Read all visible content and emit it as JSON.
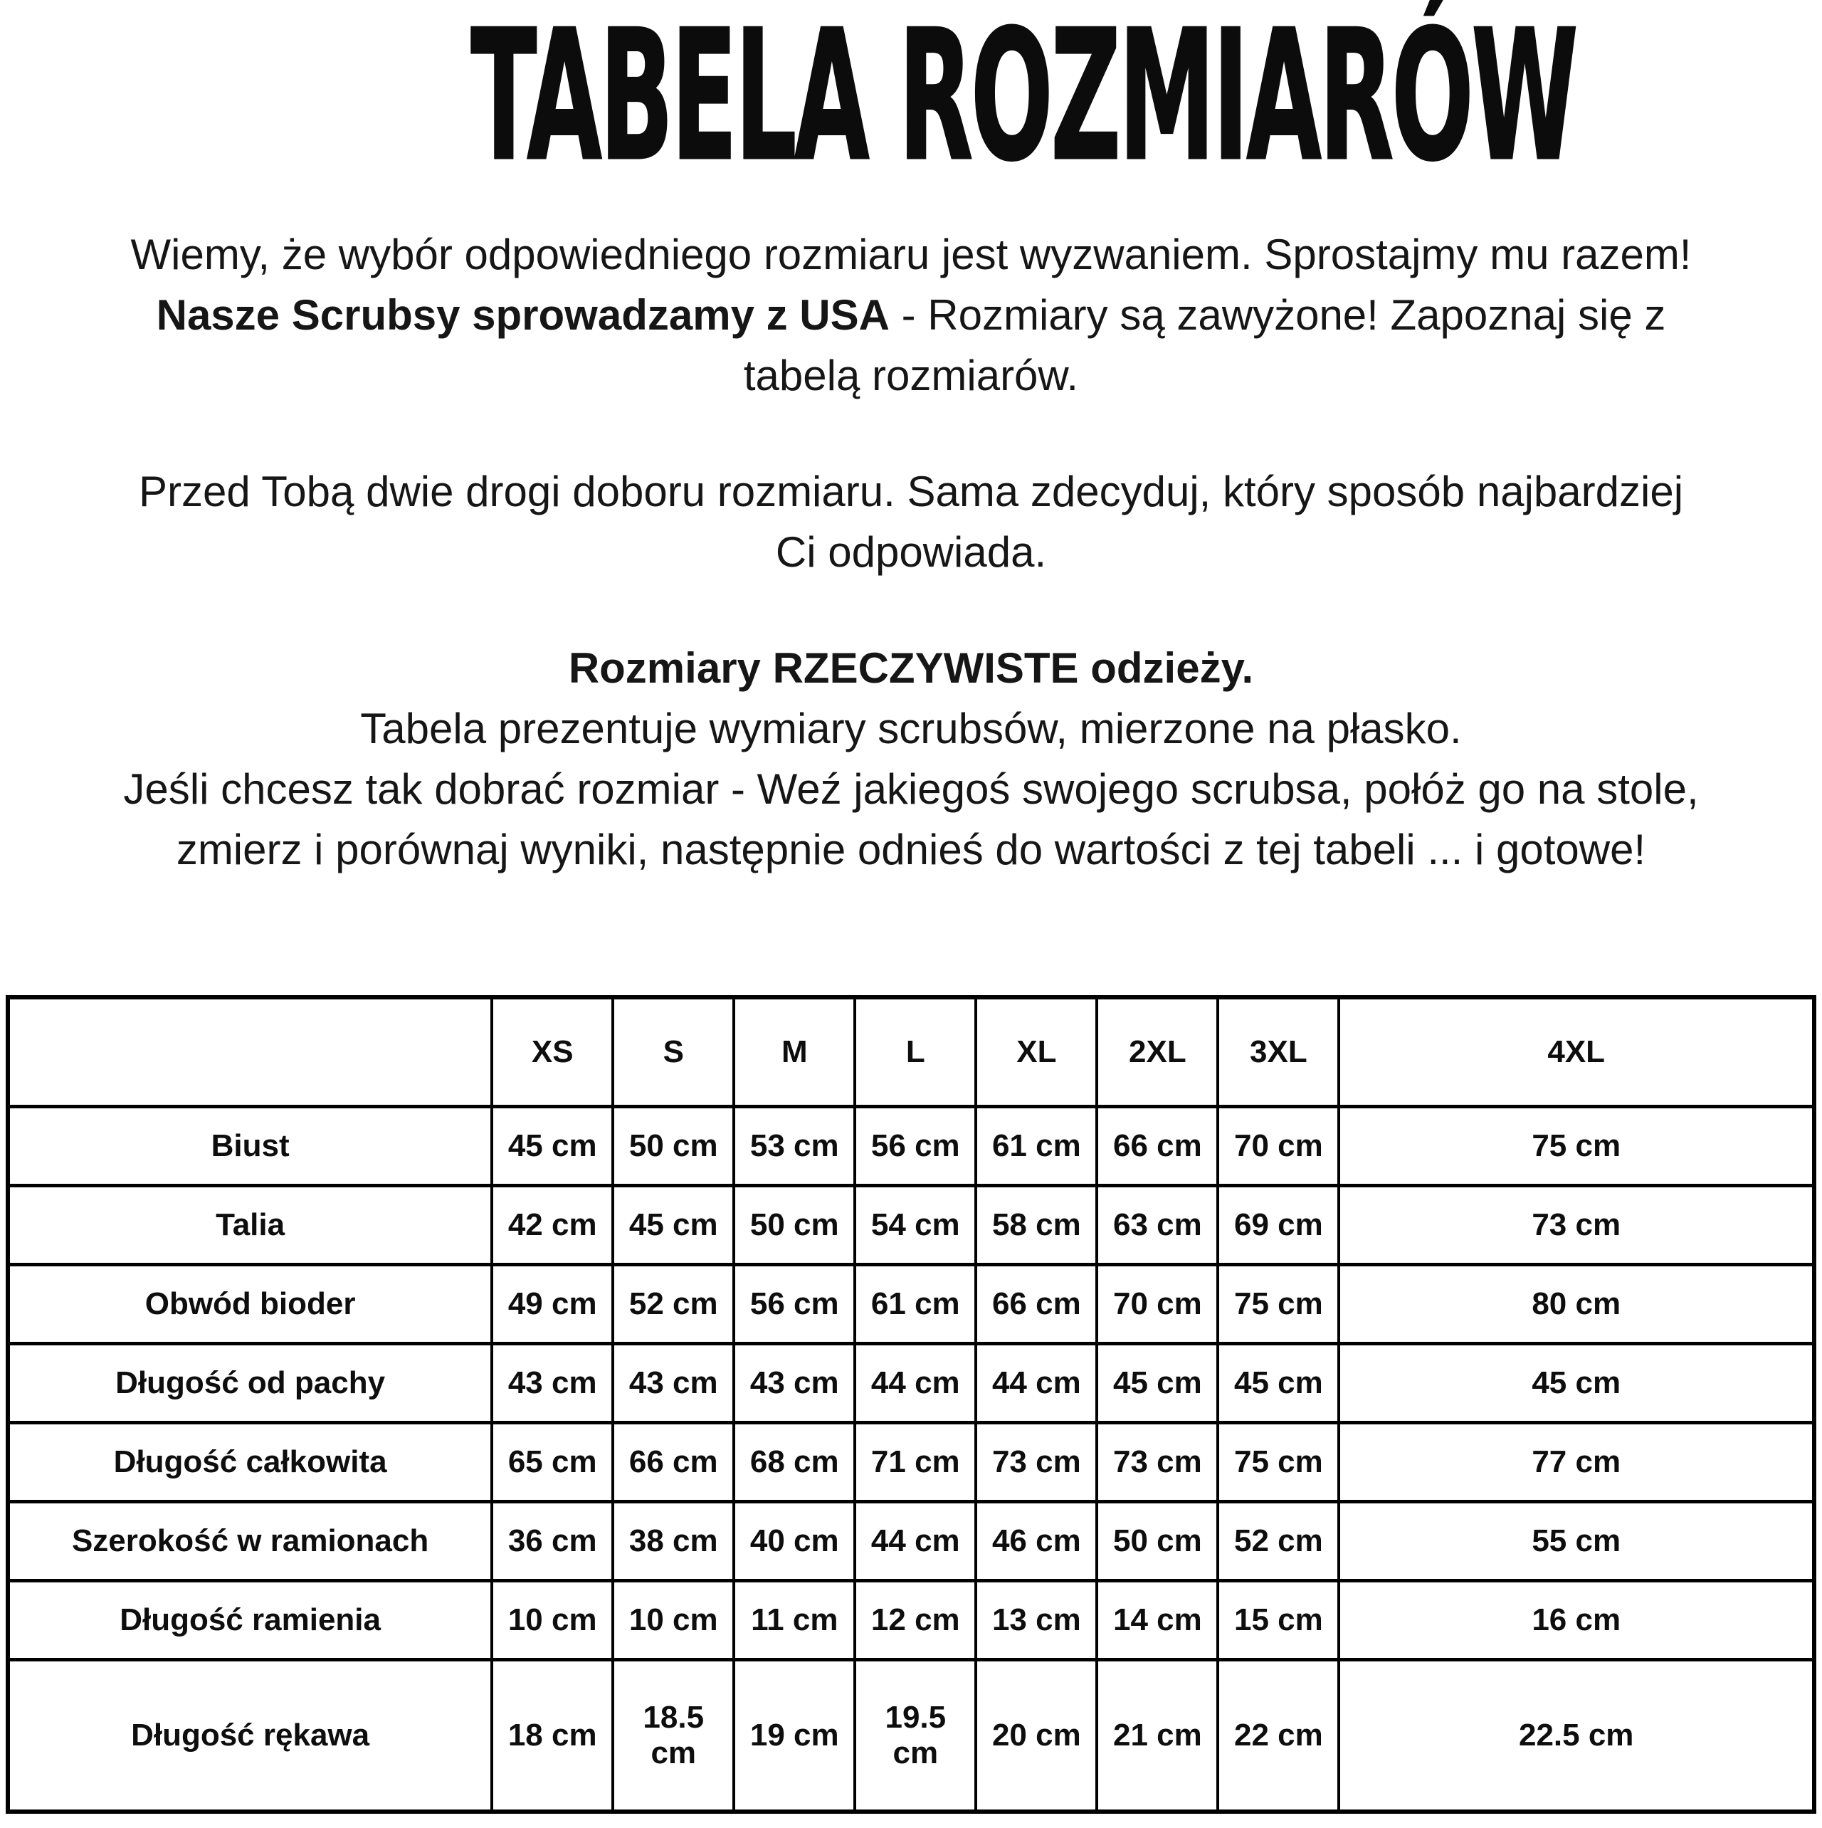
{
  "title": "TABELA ROZMIARÓW",
  "intro": {
    "line1": "Wiemy, że wybór odpowiedniego rozmiaru jest wyzwaniem. Sprostajmy mu razem!",
    "line2_bold": "Nasze Scrubsy sprowadzamy z USA",
    "line2_rest": " - Rozmiary są zawyżone! Zapoznaj się z",
    "line3": "tabelą rozmiarów."
  },
  "choice": {
    "line1": "Przed Tobą dwie drogi doboru rozmiaru. Sama zdecyduj, który sposób najbardziej",
    "line2": "Ci odpowiada."
  },
  "actual_sizes": {
    "heading": "Rozmiary RZECZYWISTE odzieży.",
    "line1": "Tabela prezentuje wymiary scrubsów, mierzone na płasko.",
    "line2": "Jeśli chcesz tak dobrać rozmiar - Weź jakiegoś swojego scrubsa, połóż go na stole,",
    "line3": "zmierz i porównaj wyniki, następnie odnieś do wartości z tej tabeli ... i gotowe!"
  },
  "table": {
    "corner_label": "",
    "sizes": [
      "XS",
      "S",
      "M",
      "L",
      "XL",
      "2XL",
      "3XL",
      "4XL"
    ],
    "rows": [
      {
        "label": "Biust",
        "values": [
          "45 cm",
          "50 cm",
          "53 cm",
          "56 cm",
          "61 cm",
          "66 cm",
          "70 cm",
          "75 cm"
        ]
      },
      {
        "label": "Talia",
        "values": [
          "42 cm",
          "45 cm",
          "50 cm",
          "54 cm",
          "58 cm",
          "63 cm",
          "69 cm",
          "73 cm"
        ]
      },
      {
        "label": "Obwód bioder",
        "values": [
          "49 cm",
          "52 cm",
          "56 cm",
          "61 cm",
          "66 cm",
          "70 cm",
          "75 cm",
          "80 cm"
        ]
      },
      {
        "label": "Długość od pachy",
        "values": [
          "43 cm",
          "43 cm",
          "43 cm",
          "44 cm",
          "44 cm",
          "45 cm",
          "45 cm",
          "45 cm"
        ]
      },
      {
        "label": "Długość całkowita",
        "values": [
          "65 cm",
          "66 cm",
          "68 cm",
          "71 cm",
          "73 cm",
          "73 cm",
          "75 cm",
          "77 cm"
        ]
      },
      {
        "label": "Szerokość w ramionach",
        "values": [
          "36 cm",
          "38 cm",
          "40 cm",
          "44 cm",
          "46 cm",
          "50 cm",
          "52 cm",
          "55 cm"
        ]
      },
      {
        "label": "Długość ramienia",
        "values": [
          "10 cm",
          "10 cm",
          "11 cm",
          "12 cm",
          "13 cm",
          "14 cm",
          "15 cm",
          "16 cm"
        ]
      },
      {
        "label": "Długość rękawa",
        "values": [
          "18 cm",
          "18.5 cm",
          "19 cm",
          "19.5 cm",
          "20 cm",
          "21 cm",
          "22 cm",
          "22.5 cm"
        ]
      }
    ]
  },
  "colors": {
    "background": "#ffffff",
    "text": "#161616",
    "table_border": "#000000"
  }
}
